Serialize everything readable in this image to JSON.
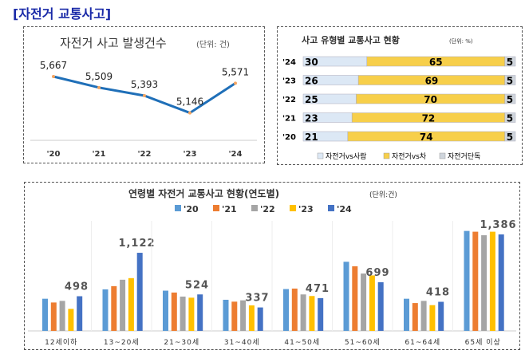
{
  "page_title": "[자전거 교통사고]",
  "chart_data": [
    {
      "type": "line",
      "title": "자전거 사고 발생건수",
      "unit": "(단위: 건)",
      "categories": [
        "'20",
        "'21",
        "'22",
        "'23",
        "'24"
      ],
      "values": [
        5667,
        5509,
        5393,
        5146,
        5571
      ],
      "data_labels": [
        "5,667",
        "5,509",
        "5,393",
        "5,146",
        "5,571"
      ],
      "line_color": "#1f6fb8"
    },
    {
      "type": "bar",
      "orientation": "horizontal",
      "stacked": true,
      "title": "사고 유형별 교통사고 현황",
      "unit": "(단위: %)",
      "categories": [
        "'24",
        "'23",
        "'22",
        "'21",
        "'20"
      ],
      "series": [
        {
          "name": "자전거vs사람",
          "values": [
            30,
            26,
            25,
            23,
            21
          ],
          "color": "#dce8f5"
        },
        {
          "name": "자전거vs차",
          "values": [
            65,
            69,
            70,
            72,
            74
          ],
          "color": "#f7cf4a"
        },
        {
          "name": "자전거단독",
          "values": [
            5,
            5,
            5,
            5,
            5
          ],
          "color": "#cfd5dc"
        }
      ],
      "legend": "bottom"
    },
    {
      "type": "bar",
      "title": "연령별 자전거 교통사고 현황(연도별)",
      "unit": "(단위:건)",
      "categories": [
        "12세이하",
        "13~20세",
        "21~30세",
        "31~40세",
        "41~50세",
        "51~60세",
        "61~64세",
        "65세 이상"
      ],
      "series": [
        {
          "name": "'20",
          "color": "#5b9bd5",
          "values": [
            462,
            597,
            578,
            447,
            601,
            993,
            462,
            1436
          ]
        },
        {
          "name": "'21",
          "color": "#ed7d31",
          "values": [
            408,
            643,
            551,
            420,
            608,
            928,
            400,
            1425
          ]
        },
        {
          "name": "'22",
          "color": "#a5a5a5",
          "values": [
            431,
            735,
            493,
            439,
            524,
            824,
            431,
            1374
          ]
        },
        {
          "name": "'23",
          "color": "#ffc000",
          "values": [
            316,
            758,
            477,
            366,
            501,
            797,
            370,
            1425
          ]
        },
        {
          "name": "'24",
          "color": "#4472c4",
          "values": [
            498,
            1122,
            524,
            337,
            471,
            699,
            418,
            1386
          ]
        }
      ],
      "data_labels": [
        "498",
        "1,122",
        "524",
        "337",
        "471",
        "699",
        "418",
        "1,386"
      ],
      "legend": "top"
    }
  ]
}
